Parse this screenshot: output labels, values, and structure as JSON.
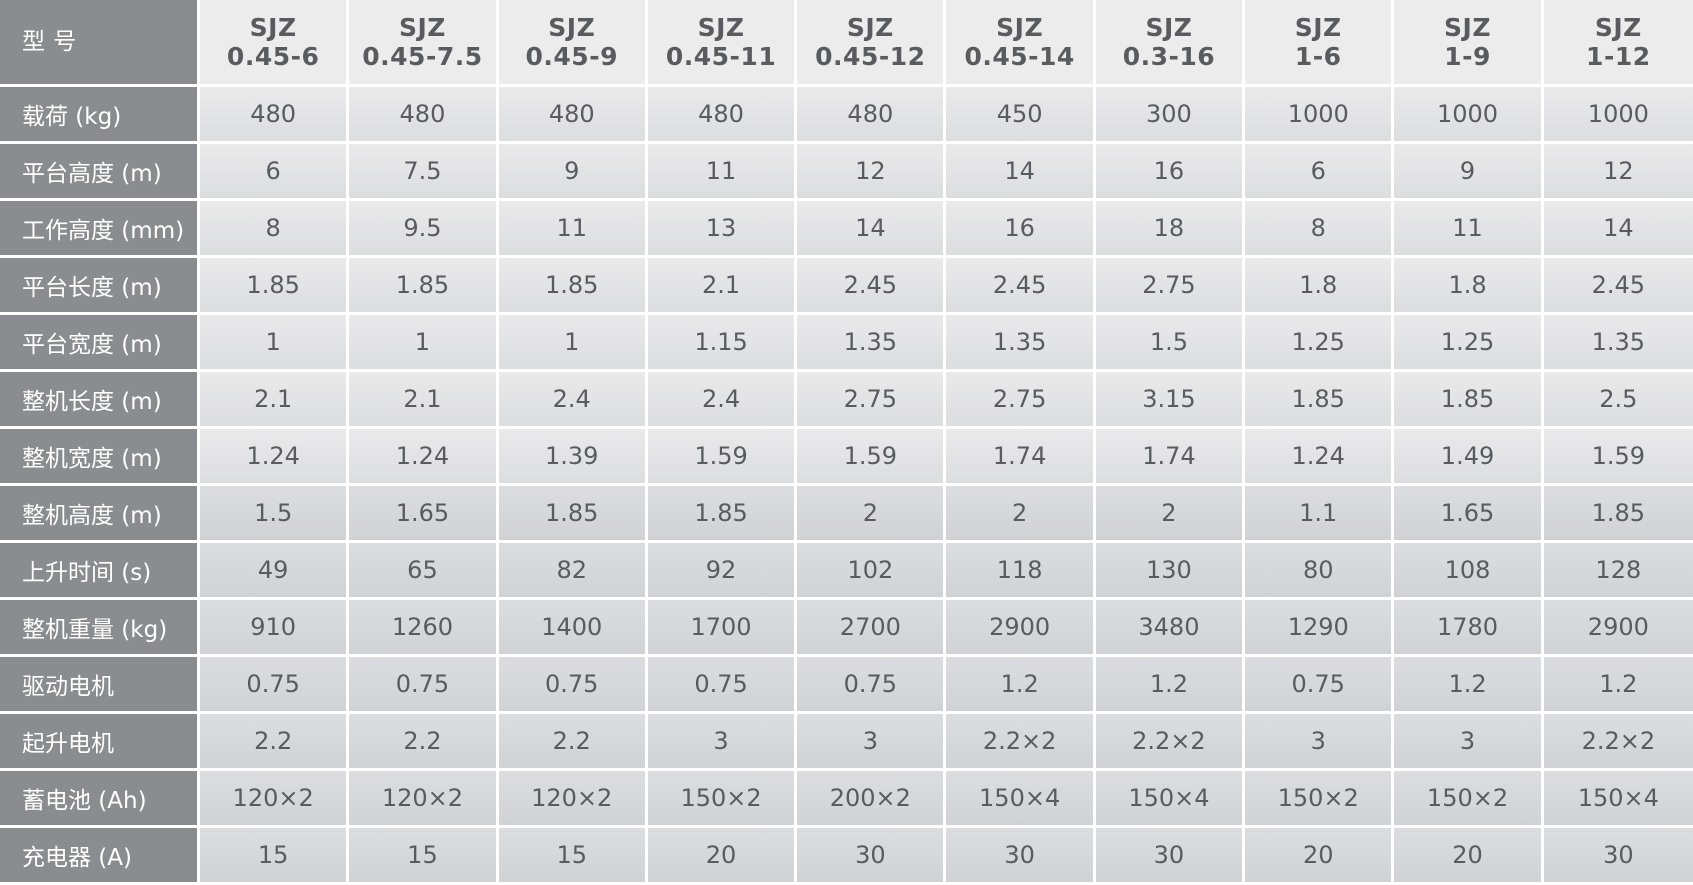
{
  "header": {
    "label": "型 号",
    "models": [
      [
        "SJZ",
        "0.45-6"
      ],
      [
        "SJZ",
        "0.45-7.5"
      ],
      [
        "SJZ",
        "0.45-9"
      ],
      [
        "SJZ",
        "0.45-11"
      ],
      [
        "SJZ",
        "0.45-12"
      ],
      [
        "SJZ",
        "0.45-14"
      ],
      [
        "SJZ",
        "0.3-16"
      ],
      [
        "SJZ",
        "1-6"
      ],
      [
        "SJZ",
        "1-9"
      ],
      [
        "SJZ",
        "1-12"
      ]
    ]
  },
  "rows": [
    {
      "label": "载荷 (kg)",
      "values": [
        "480",
        "480",
        "480",
        "480",
        "480",
        "450",
        "300",
        "1000",
        "1000",
        "1000"
      ]
    },
    {
      "label": "平台高度 (m)",
      "values": [
        "6",
        "7.5",
        "9",
        "11",
        "12",
        "14",
        "16",
        "6",
        "9",
        "12"
      ]
    },
    {
      "label": "工作高度 (mm)",
      "values": [
        "8",
        "9.5",
        "11",
        "13",
        "14",
        "16",
        "18",
        "8",
        "11",
        "14"
      ]
    },
    {
      "label": "平台长度 (m)",
      "values": [
        "1.85",
        "1.85",
        "1.85",
        "2.1",
        "2.45",
        "2.45",
        "2.75",
        "1.8",
        "1.8",
        "2.45"
      ]
    },
    {
      "label": "平台宽度 (m)",
      "values": [
        "1",
        "1",
        "1",
        "1.15",
        "1.35",
        "1.35",
        "1.5",
        "1.25",
        "1.25",
        "1.35"
      ]
    },
    {
      "label": "整机长度 (m)",
      "values": [
        "2.1",
        "2.1",
        "2.4",
        "2.4",
        "2.75",
        "2.75",
        "3.15",
        "1.85",
        "1.85",
        "2.5"
      ]
    },
    {
      "label": "整机宽度 (m)",
      "values": [
        "1.24",
        "1.24",
        "1.39",
        "1.59",
        "1.59",
        "1.74",
        "1.74",
        "1.24",
        "1.49",
        "1.59"
      ]
    },
    {
      "label": "整机高度 (m)",
      "values": [
        "1.5",
        "1.65",
        "1.85",
        "1.85",
        "2",
        "2",
        "2",
        "1.1",
        "1.65",
        "1.85"
      ]
    },
    {
      "label": "上升时间 (s)",
      "values": [
        "49",
        "65",
        "82",
        "92",
        "102",
        "118",
        "130",
        "80",
        "108",
        "128"
      ]
    },
    {
      "label": "整机重量 (kg)",
      "values": [
        "910",
        "1260",
        "1400",
        "1700",
        "2700",
        "2900",
        "3480",
        "1290",
        "1780",
        "2900"
      ]
    },
    {
      "label": "驱动电机",
      "values": [
        "0.75",
        "0.75",
        "0.75",
        "0.75",
        "0.75",
        "1.2",
        "1.2",
        "0.75",
        "1.2",
        "1.2"
      ]
    },
    {
      "label": "起升电机",
      "values": [
        "2.2",
        "2.2",
        "2.2",
        "3",
        "3",
        "2.2×2",
        "2.2×2",
        "3",
        "3",
        "2.2×2"
      ]
    },
    {
      "label": "蓄电池 (Ah)",
      "values": [
        "120×2",
        "120×2",
        "120×2",
        "150×2",
        "200×2",
        "150×4",
        "150×4",
        "150×2",
        "150×2",
        "150×4"
      ]
    },
    {
      "label": "充电器 (A)",
      "values": [
        "15",
        "15",
        "15",
        "20",
        "30",
        "30",
        "30",
        "20",
        "20",
        "30"
      ]
    }
  ],
  "colors": {
    "label_bg": "#8b8c8f",
    "cell_bg": "#e4e4e6",
    "text": "#5a5b5e"
  }
}
